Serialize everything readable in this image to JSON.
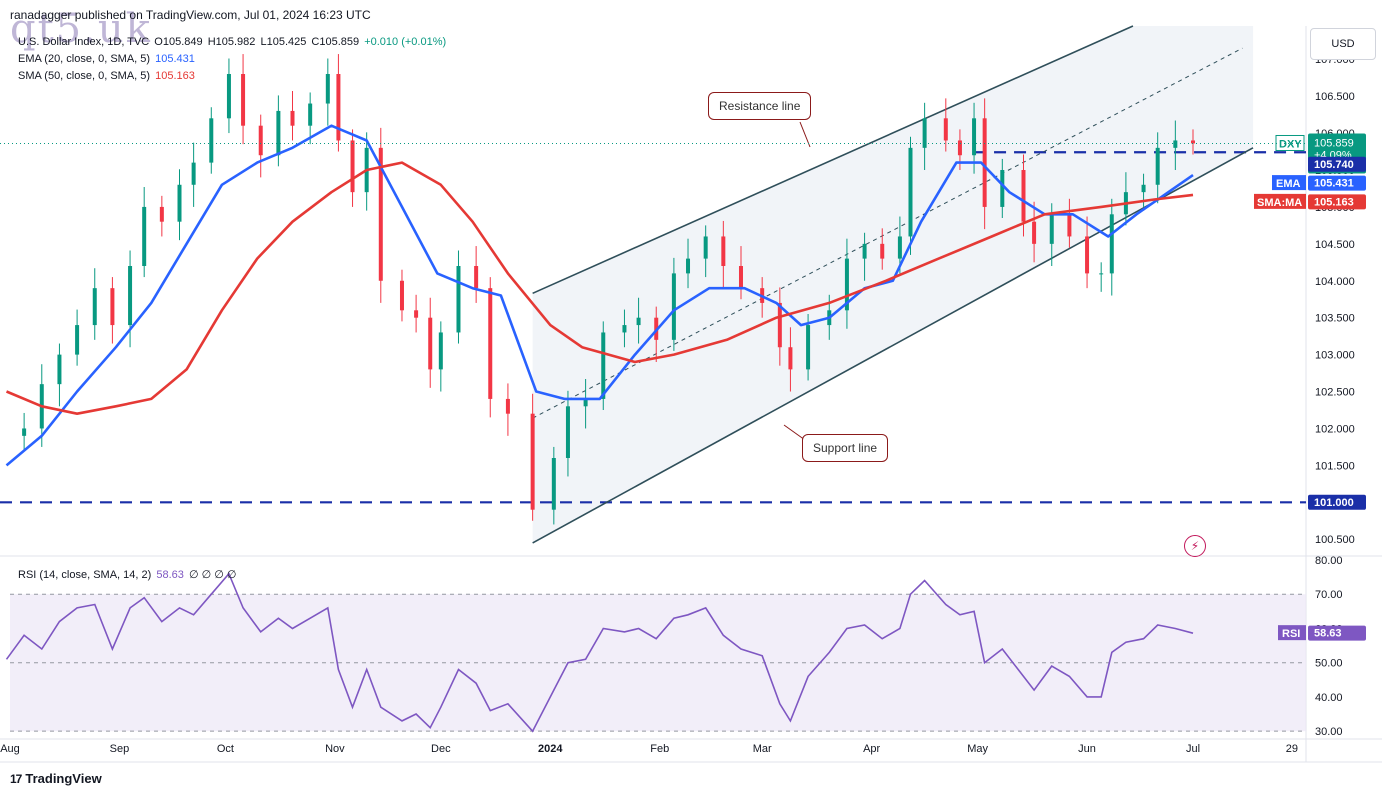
{
  "header": {
    "published": "ranadagger published on TradingView.com, Jul 01, 2024 16:23 UTC",
    "watermark": "qt5.uk"
  },
  "legend": {
    "symbol": "U.S. Dollar Index, 1D, TVC",
    "o": "O105.849",
    "h": "H105.982",
    "l": "L105.425",
    "c": "C105.859",
    "change": "+0.010 (+0.01%)",
    "ema_label": "EMA (20, close, 0, SMA, 5)",
    "ema_value": "105.431",
    "sma_label": "SMA (50, close, 0, SMA, 5)",
    "sma_value": "105.163",
    "rsi_label": "RSI (14, close, SMA, 14, 2)",
    "rsi_value": "58.63",
    "rsi_extra": "∅ ∅ ∅ ∅"
  },
  "currency_button": "USD",
  "footer_logo": "TradingView",
  "footer_logo_mark": "17",
  "annotations": {
    "resistance": "Resistance line",
    "support": "Support line"
  },
  "colors": {
    "up": "#089981",
    "down": "#f23645",
    "ema": "#2962ff",
    "sma": "#e53935",
    "dashed": "#1a2fa8",
    "channel": "#2f4f5a",
    "rsi": "#7e57c2",
    "rsi_band": "#ede7f6"
  },
  "chart_data": [
    {
      "type": "candlestick",
      "title": "U.S. Dollar Index, 1D, TVC",
      "ylim": [
        100.3,
        107.45
      ],
      "y_ticks": [
        "107.000",
        "106.500",
        "106.000",
        "105.500",
        "105.000",
        "104.500",
        "104.000",
        "103.500",
        "103.000",
        "102.500",
        "102.000",
        "101.500",
        "101.000",
        "100.500"
      ],
      "x_ticks": [
        "Aug",
        "Sep",
        "Oct",
        "Nov",
        "Dec",
        "2024",
        "Feb",
        "Mar",
        "Apr",
        "May",
        "Jun",
        "Jul",
        "29"
      ],
      "x_tick_dates": [
        "2023-08-01",
        "2023-09-01",
        "2023-10-01",
        "2023-11-01",
        "2023-12-01",
        "2024-01-01",
        "2024-02-01",
        "2024-03-01",
        "2024-04-01",
        "2024-05-01",
        "2024-06-01",
        "2024-07-01",
        "2024-07-29"
      ],
      "x_range": [
        "2023-08-01",
        "2024-08-02"
      ],
      "close_series": [
        [
          "2023-07-31",
          101.9
        ],
        [
          "2023-08-05",
          102.0
        ],
        [
          "2023-08-10",
          102.6
        ],
        [
          "2023-08-15",
          103.0
        ],
        [
          "2023-08-20",
          103.4
        ],
        [
          "2023-08-25",
          103.9
        ],
        [
          "2023-08-30",
          103.4
        ],
        [
          "2023-09-04",
          104.2
        ],
        [
          "2023-09-08",
          105.0
        ],
        [
          "2023-09-13",
          104.8
        ],
        [
          "2023-09-18",
          105.3
        ],
        [
          "2023-09-22",
          105.6
        ],
        [
          "2023-09-27",
          106.2
        ],
        [
          "2023-10-02",
          106.8
        ],
        [
          "2023-10-06",
          106.1
        ],
        [
          "2023-10-11",
          105.7
        ],
        [
          "2023-10-16",
          106.3
        ],
        [
          "2023-10-20",
          106.1
        ],
        [
          "2023-10-25",
          106.4
        ],
        [
          "2023-10-30",
          106.8
        ],
        [
          "2023-11-02",
          105.9
        ],
        [
          "2023-11-06",
          105.2
        ],
        [
          "2023-11-10",
          105.8
        ],
        [
          "2023-11-14",
          104.0
        ],
        [
          "2023-11-20",
          103.6
        ],
        [
          "2023-11-24",
          103.5
        ],
        [
          "2023-11-28",
          102.8
        ],
        [
          "2023-12-01",
          103.3
        ],
        [
          "2023-12-06",
          104.2
        ],
        [
          "2023-12-11",
          103.9
        ],
        [
          "2023-12-15",
          102.4
        ],
        [
          "2023-12-20",
          102.2
        ],
        [
          "2023-12-27",
          100.9
        ],
        [
          "2024-01-02",
          101.6
        ],
        [
          "2024-01-06",
          102.3
        ],
        [
          "2024-01-11",
          102.4
        ],
        [
          "2024-01-16",
          103.3
        ],
        [
          "2024-01-22",
          103.4
        ],
        [
          "2024-01-26",
          103.5
        ],
        [
          "2024-01-31",
          103.2
        ],
        [
          "2024-02-05",
          104.1
        ],
        [
          "2024-02-09",
          104.3
        ],
        [
          "2024-02-14",
          104.6
        ],
        [
          "2024-02-19",
          104.2
        ],
        [
          "2024-02-24",
          103.9
        ],
        [
          "2024-03-01",
          103.7
        ],
        [
          "2024-03-06",
          103.1
        ],
        [
          "2024-03-09",
          102.8
        ],
        [
          "2024-03-14",
          103.4
        ],
        [
          "2024-03-20",
          103.6
        ],
        [
          "2024-03-25",
          104.3
        ],
        [
          "2024-03-30",
          104.5
        ],
        [
          "2024-04-04",
          104.3
        ],
        [
          "2024-04-09",
          104.6
        ],
        [
          "2024-04-12",
          105.8
        ],
        [
          "2024-04-16",
          106.2
        ],
        [
          "2024-04-22",
          105.9
        ],
        [
          "2024-04-26",
          105.7
        ],
        [
          "2024-04-30",
          106.2
        ],
        [
          "2024-05-03",
          105.0
        ],
        [
          "2024-05-08",
          105.5
        ],
        [
          "2024-05-14",
          104.8
        ],
        [
          "2024-05-17",
          104.5
        ],
        [
          "2024-05-22",
          104.9
        ],
        [
          "2024-05-27",
          104.6
        ],
        [
          "2024-06-01",
          104.1
        ],
        [
          "2024-06-05",
          104.1
        ],
        [
          "2024-06-08",
          104.9
        ],
        [
          "2024-06-12",
          105.2
        ],
        [
          "2024-06-17",
          105.3
        ],
        [
          "2024-06-21",
          105.8
        ],
        [
          "2024-06-26",
          105.9
        ],
        [
          "2024-07-01",
          105.86
        ]
      ],
      "series": [
        {
          "name": "EMA (20, close, 0, SMA, 5)",
          "last": 105.431,
          "points": [
            [
              "2023-07-31",
              101.5
            ],
            [
              "2023-08-10",
              101.9
            ],
            [
              "2023-08-20",
              102.5
            ],
            [
              "2023-08-31",
              103.1
            ],
            [
              "2023-09-10",
              103.7
            ],
            [
              "2023-09-20",
              104.5
            ],
            [
              "2023-09-30",
              105.3
            ],
            [
              "2023-10-10",
              105.6
            ],
            [
              "2023-10-20",
              105.8
            ],
            [
              "2023-10-31",
              106.1
            ],
            [
              "2023-11-05",
              106.0
            ],
            [
              "2023-11-10",
              105.9
            ],
            [
              "2023-11-20",
              105.0
            ],
            [
              "2023-11-30",
              104.1
            ],
            [
              "2023-12-10",
              103.9
            ],
            [
              "2023-12-18",
              103.8
            ],
            [
              "2023-12-28",
              102.5
            ],
            [
              "2024-01-05",
              102.4
            ],
            [
              "2024-01-15",
              102.4
            ],
            [
              "2024-01-25",
              103.0
            ],
            [
              "2024-02-05",
              103.6
            ],
            [
              "2024-02-15",
              103.9
            ],
            [
              "2024-02-25",
              103.9
            ],
            [
              "2024-03-05",
              103.7
            ],
            [
              "2024-03-12",
              103.4
            ],
            [
              "2024-03-20",
              103.5
            ],
            [
              "2024-03-30",
              103.9
            ],
            [
              "2024-04-07",
              104.0
            ],
            [
              "2024-04-15",
              104.8
            ],
            [
              "2024-04-25",
              105.6
            ],
            [
              "2024-05-02",
              105.6
            ],
            [
              "2024-05-10",
              105.2
            ],
            [
              "2024-05-20",
              104.9
            ],
            [
              "2024-05-28",
              104.9
            ],
            [
              "2024-06-07",
              104.6
            ],
            [
              "2024-06-15",
              104.9
            ],
            [
              "2024-06-24",
              105.2
            ],
            [
              "2024-07-01",
              105.431
            ]
          ]
        },
        {
          "name": "SMA (50, close, 0, SMA, 5)",
          "last": 105.163,
          "points": [
            [
              "2023-07-31",
              102.5
            ],
            [
              "2023-08-10",
              102.3
            ],
            [
              "2023-08-20",
              102.2
            ],
            [
              "2023-08-31",
              102.3
            ],
            [
              "2023-09-10",
              102.4
            ],
            [
              "2023-09-20",
              102.8
            ],
            [
              "2023-09-30",
              103.6
            ],
            [
              "2023-10-10",
              104.3
            ],
            [
              "2023-10-20",
              104.8
            ],
            [
              "2023-10-31",
              105.2
            ],
            [
              "2023-11-10",
              105.5
            ],
            [
              "2023-11-20",
              105.6
            ],
            [
              "2023-12-01",
              105.3
            ],
            [
              "2023-12-10",
              104.8
            ],
            [
              "2023-12-20",
              104.1
            ],
            [
              "2024-01-01",
              103.4
            ],
            [
              "2024-01-10",
              103.1
            ],
            [
              "2024-01-25",
              102.9
            ],
            [
              "2024-02-05",
              103.0
            ],
            [
              "2024-02-20",
              103.2
            ],
            [
              "2024-03-05",
              103.5
            ],
            [
              "2024-03-20",
              103.7
            ],
            [
              "2024-04-05",
              104.0
            ],
            [
              "2024-04-20",
              104.3
            ],
            [
              "2024-05-05",
              104.6
            ],
            [
              "2024-05-20",
              104.9
            ],
            [
              "2024-06-05",
              105.0
            ],
            [
              "2024-06-20",
              105.1
            ],
            [
              "2024-07-01",
              105.163
            ]
          ]
        }
      ],
      "horizontal_levels": [
        {
          "value": 105.74,
          "label": "105.740"
        },
        {
          "value": 101.0,
          "label": "101.000"
        }
      ],
      "channel": {
        "support": [
          [
            "2023-12-27",
            100.45
          ],
          [
            "2024-07-18",
            105.8
          ]
        ],
        "resistance": [
          [
            "2023-12-27",
            103.83
          ],
          [
            "2024-06-14",
            107.45
          ]
        ],
        "mid": [
          [
            "2023-12-27",
            102.14
          ],
          [
            "2024-07-15",
            107.15
          ]
        ]
      },
      "price_labels": [
        {
          "text": "DXY",
          "value": 105.859,
          "sub": [
            "105.859",
            "+4.09%",
            "06:36:39"
          ]
        },
        {
          "text": "EMA",
          "value": 105.431,
          "label": "105.431"
        },
        {
          "text": "SMA:MA",
          "value": 105.163,
          "label": "105.163"
        }
      ]
    },
    {
      "type": "line",
      "title": "RSI (14, close, SMA, 14, 2)",
      "ylim": [
        28,
        80
      ],
      "y_ticks": [
        "80.00",
        "70.00",
        "60.00",
        "50.00",
        "40.00",
        "30.00"
      ],
      "band": [
        30,
        70
      ],
      "last": 58.63,
      "series": [
        {
          "name": "RSI",
          "points": [
            [
              "2023-07-31",
              51
            ],
            [
              "2023-08-05",
              58
            ],
            [
              "2023-08-10",
              54
            ],
            [
              "2023-08-15",
              62
            ],
            [
              "2023-08-20",
              66
            ],
            [
              "2023-08-25",
              67
            ],
            [
              "2023-08-30",
              54
            ],
            [
              "2023-09-04",
              66
            ],
            [
              "2023-09-08",
              69
            ],
            [
              "2023-09-13",
              62
            ],
            [
              "2023-09-18",
              66
            ],
            [
              "2023-09-22",
              64
            ],
            [
              "2023-09-27",
              70
            ],
            [
              "2023-10-02",
              76
            ],
            [
              "2023-10-06",
              66
            ],
            [
              "2023-10-11",
              59
            ],
            [
              "2023-10-16",
              63
            ],
            [
              "2023-10-20",
              60
            ],
            [
              "2023-10-25",
              63
            ],
            [
              "2023-10-30",
              66
            ],
            [
              "2023-11-02",
              48
            ],
            [
              "2023-11-06",
              37
            ],
            [
              "2023-11-10",
              48
            ],
            [
              "2023-11-14",
              37
            ],
            [
              "2023-11-20",
              33
            ],
            [
              "2023-11-24",
              35
            ],
            [
              "2023-11-28",
              31
            ],
            [
              "2023-12-01",
              37
            ],
            [
              "2023-12-06",
              48
            ],
            [
              "2023-12-11",
              44
            ],
            [
              "2023-12-15",
              36
            ],
            [
              "2023-12-20",
              38
            ],
            [
              "2023-12-27",
              30
            ],
            [
              "2024-01-02",
              42
            ],
            [
              "2024-01-06",
              50
            ],
            [
              "2024-01-11",
              51
            ],
            [
              "2024-01-16",
              60
            ],
            [
              "2024-01-22",
              59
            ],
            [
              "2024-01-26",
              60
            ],
            [
              "2024-01-31",
              57
            ],
            [
              "2024-02-05",
              63
            ],
            [
              "2024-02-09",
              64
            ],
            [
              "2024-02-14",
              66
            ],
            [
              "2024-02-19",
              58
            ],
            [
              "2024-02-24",
              54
            ],
            [
              "2024-03-01",
              52
            ],
            [
              "2024-03-06",
              38
            ],
            [
              "2024-03-09",
              33
            ],
            [
              "2024-03-14",
              46
            ],
            [
              "2024-03-20",
              53
            ],
            [
              "2024-03-25",
              60
            ],
            [
              "2024-03-30",
              61
            ],
            [
              "2024-04-04",
              57
            ],
            [
              "2024-04-09",
              60
            ],
            [
              "2024-04-12",
              70
            ],
            [
              "2024-04-16",
              74
            ],
            [
              "2024-04-22",
              67
            ],
            [
              "2024-04-26",
              64
            ],
            [
              "2024-04-30",
              65
            ],
            [
              "2024-05-03",
              50
            ],
            [
              "2024-05-08",
              54
            ],
            [
              "2024-05-14",
              46
            ],
            [
              "2024-05-17",
              42
            ],
            [
              "2024-05-22",
              49
            ],
            [
              "2024-05-27",
              46
            ],
            [
              "2024-06-01",
              40
            ],
            [
              "2024-06-05",
              40
            ],
            [
              "2024-06-08",
              53
            ],
            [
              "2024-06-12",
              56
            ],
            [
              "2024-06-17",
              57
            ],
            [
              "2024-06-21",
              61
            ],
            [
              "2024-06-26",
              60
            ],
            [
              "2024-07-01",
              58.63
            ]
          ]
        }
      ],
      "price_labels": [
        {
          "text": "RSI",
          "value": 58.63,
          "label": "58.63"
        }
      ]
    }
  ]
}
